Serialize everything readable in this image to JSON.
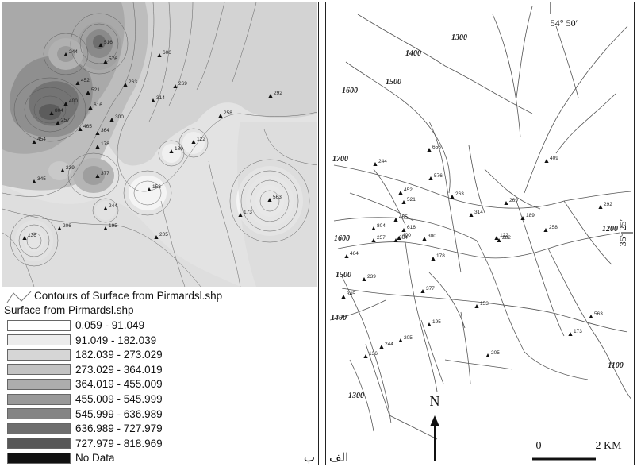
{
  "panel_b": {
    "corner_label": "ب",
    "legend": {
      "contours_label": "Contours of Surface from Pirmardsl.shp",
      "surface_title": "Surface from Pirmardsl.shp",
      "classes": [
        {
          "label": "0.059 - 91.049",
          "color": "#ffffff"
        },
        {
          "label": "91.049 - 182.039",
          "color": "#ececec"
        },
        {
          "label": "182.039 - 273.029",
          "color": "#d6d6d6"
        },
        {
          "label": "273.029 - 364.019",
          "color": "#c2c2c2"
        },
        {
          "label": "364.019 - 455.009",
          "color": "#adadad"
        },
        {
          "label": "455.009 - 545.999",
          "color": "#999999"
        },
        {
          "label": "545.999 - 636.989",
          "color": "#848484"
        },
        {
          "label": "636.989 - 727.979",
          "color": "#6e6e6e"
        },
        {
          "label": "727.979 - 818.969",
          "color": "#575757"
        },
        {
          "label": "No Data",
          "color": "#111111"
        }
      ]
    },
    "map_labels": [
      "244",
      "516",
      "576",
      "606",
      "452",
      "521",
      "263",
      "269",
      "314",
      "292",
      "400",
      "616",
      "257",
      "804",
      "465",
      "364",
      "300",
      "178",
      "258",
      "454",
      "122",
      "189",
      "239",
      "345",
      "377",
      "153",
      "563",
      "136",
      "206",
      "244",
      "205",
      "195",
      "173"
    ]
  },
  "panel_a": {
    "corner_label": "الف",
    "longitude": "54° 50′",
    "latitude": "35° 25′",
    "north_label": "N",
    "scale_start": "0",
    "scale_end": "2 KM",
    "contour_labels": [
      "1300",
      "1400",
      "1500",
      "1600",
      "1700",
      "1600",
      "1500",
      "1400",
      "1300",
      "1200",
      "1100"
    ],
    "point_labels": [
      "656",
      "244",
      "409",
      "576",
      "452",
      "263",
      "521",
      "269",
      "314",
      "292",
      "465",
      "804",
      "616",
      "400",
      "257",
      "364",
      "300",
      "258",
      "189",
      "464",
      "178",
      "282",
      "122",
      "239",
      "377",
      "153",
      "345",
      "563",
      "195",
      "244",
      "205",
      "173",
      "136",
      "205"
    ]
  }
}
